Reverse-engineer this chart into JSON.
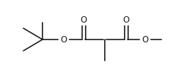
{
  "bg_color": "#ffffff",
  "line_color": "#1a1a1a",
  "line_width": 1.2,
  "font_size": 8.5,
  "figsize": [
    2.5,
    1.12
  ],
  "dpi": 100,
  "xlim": [
    0,
    250
  ],
  "ylim": [
    0,
    112
  ]
}
